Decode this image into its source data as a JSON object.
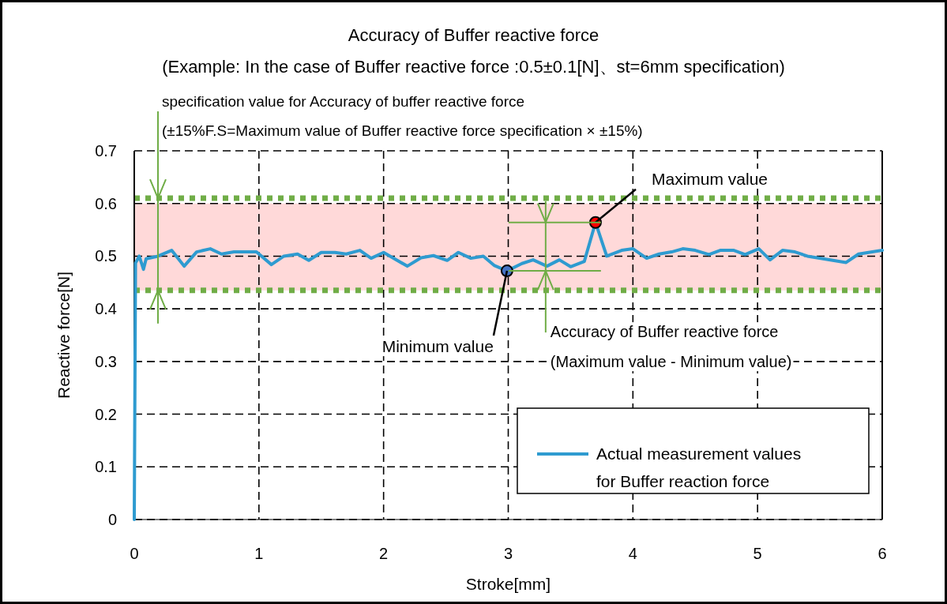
{
  "chart_data": {
    "type": "line",
    "title": "Accuracy of Buffer reactive force",
    "subtitle": "(Example: In the case of Buffer reactive force :0.5±0.1[N]、st=6mm specification)",
    "xlabel": "Stroke[mm]",
    "ylabel": "Reactive force[N]",
    "xlim": [
      0,
      6
    ],
    "xticks": [
      0,
      1,
      2,
      3,
      4,
      5,
      6
    ],
    "ylim": [
      0,
      0.7
    ],
    "yticks": [
      0,
      0.1,
      0.2,
      0.3,
      0.4,
      0.5,
      0.6,
      0.7
    ],
    "grid": true,
    "legend": "bottom right",
    "series": [
      {
        "name": "Actual measurement values\nfor Buffer reaction force",
        "color": "#2e9bd0",
        "type": "line",
        "line_style": "solid",
        "marker": "none",
        "x": [
          0,
          0.01,
          0.04,
          0.074,
          0.095,
          0.19,
          0.3,
          0.4,
          0.5,
          0.61,
          0.7,
          0.8,
          0.98,
          1.1,
          1.2,
          1.31,
          1.4,
          1.5,
          1.61,
          1.7,
          1.81,
          1.9,
          2.0,
          2.19,
          2.3,
          2.4,
          2.51,
          2.6,
          2.7,
          2.8,
          2.89,
          2.99,
          3.11,
          3.2,
          3.31,
          3.41,
          3.5,
          3.61,
          3.7,
          3.79,
          3.91,
          4.0,
          4.11,
          4.21,
          4.31,
          4.4,
          4.5,
          4.61,
          4.7,
          4.81,
          4.9,
          5.01,
          5.1,
          5.2,
          5.3,
          5.4,
          5.71,
          5.81,
          6.0
        ],
        "values": [
          0,
          0.487,
          0.5,
          0.475,
          0.495,
          0.5,
          0.511,
          0.481,
          0.508,
          0.514,
          0.504,
          0.508,
          0.508,
          0.484,
          0.5,
          0.504,
          0.492,
          0.507,
          0.507,
          0.504,
          0.511,
          0.496,
          0.507,
          0.481,
          0.497,
          0.501,
          0.492,
          0.507,
          0.496,
          0.5,
          0.482,
          0.472,
          0.486,
          0.493,
          0.481,
          0.493,
          0.48,
          0.49,
          0.564,
          0.5,
          0.511,
          0.514,
          0.496,
          0.504,
          0.508,
          0.514,
          0.511,
          0.503,
          0.511,
          0.511,
          0.503,
          0.514,
          0.493,
          0.511,
          0.508,
          0.5,
          0.488,
          0.504,
          0.511
        ]
      },
      {
        "type": "scatter",
        "marker": "circle",
        "x": [
          2.99,
          3.7
        ],
        "values": [
          0.472,
          0.564
        ],
        "colors": [
          "#4472c4",
          "#ff0000"
        ]
      }
    ],
    "bands": [
      {
        "axis": "y",
        "from": 0.435,
        "to": 0.6,
        "color": "#ffd9d9"
      }
    ],
    "ref_lines": [
      {
        "axis": "y",
        "value": 0.61,
        "color": "#70ad47",
        "line_style": "dotted"
      },
      {
        "axis": "y",
        "value": 0.435,
        "color": "#70ad47",
        "line_style": "dotted"
      }
    ],
    "annotations": [
      {
        "text": "Minimum value",
        "x": 2.99,
        "y": 0.472
      },
      {
        "text": "Maximum value",
        "x": 3.7,
        "y": 0.564
      },
      {
        "text": "specification value for Accuracy of buffer reactive force\n(±15%F.S=Maximum value of Buffer reactive force specification × ±15%)",
        "x": 0.19,
        "y": 0.61
      },
      {
        "text": "Accuracy of Buffer reactive force\n(Maximum value - Minimum value)",
        "x": 3.3,
        "y": 0.472
      }
    ]
  }
}
